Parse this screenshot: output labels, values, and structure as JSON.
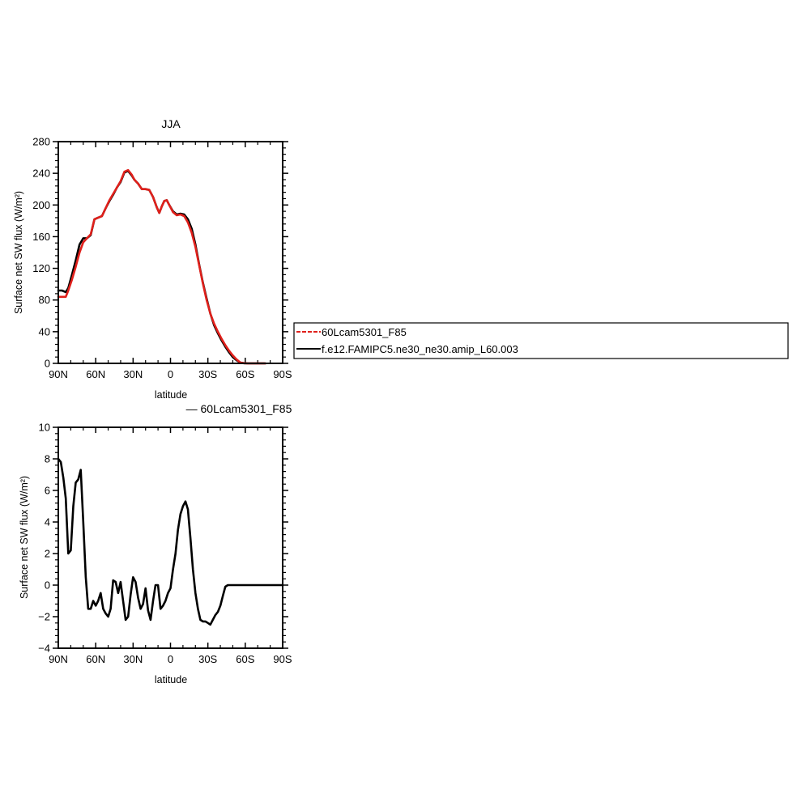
{
  "chart_data": [
    {
      "type": "line",
      "title": "JJA",
      "xlabel": "latitude",
      "ylabel": "Surface net SW flux (W/m²)",
      "xlim": [
        90,
        -90
      ],
      "ylim": [
        0,
        280
      ],
      "xticks": [
        90,
        60,
        30,
        0,
        -30,
        -60,
        -90
      ],
      "xtick_labels": [
        "90N",
        "60N",
        "30N",
        "0",
        "30S",
        "60S",
        "90S"
      ],
      "yticks": [
        0,
        40,
        80,
        120,
        160,
        200,
        240,
        280
      ],
      "ytick_labels": [
        "0",
        "40",
        "80",
        "120",
        "160",
        "200",
        "240",
        "280"
      ],
      "grid": false,
      "legend": {
        "placement": "right",
        "entries": [
          {
            "label": "60Lcam5301_F85",
            "color": "#e0201b",
            "style": "dashed"
          },
          {
            "label": "f.e12.FAMIPC5.ne30_ne30.amip_L60.003",
            "color": "#000000",
            "style": "solid"
          }
        ]
      },
      "series": [
        {
          "name": "60Lcam5301_F85",
          "color": "#e0201b",
          "x": [
            90,
            87,
            84,
            82,
            79,
            76,
            73,
            70,
            67,
            64,
            61,
            58,
            55,
            52,
            49,
            46,
            43,
            40,
            37,
            34,
            31,
            29,
            26,
            23,
            20,
            17,
            14,
            11,
            9,
            7,
            5,
            3,
            1,
            -2,
            -5,
            -8,
            -11,
            -14,
            -17,
            -20,
            -23,
            -26,
            -29,
            -32,
            -35,
            -38,
            -41,
            -44,
            -47,
            -50,
            -53,
            -56,
            -59,
            -62,
            -64,
            -66,
            -68,
            -70,
            -73,
            -76
          ],
          "y": [
            84,
            84,
            84,
            92,
            106,
            122,
            140,
            153,
            158,
            163,
            182,
            184,
            186,
            196,
            206,
            214,
            222,
            230,
            242,
            244,
            238,
            232,
            227,
            220,
            220,
            219,
            210,
            197,
            190,
            198,
            205,
            206,
            200,
            191,
            187,
            188,
            186,
            178,
            165,
            147,
            124,
            101,
            80,
            63,
            50,
            40,
            31,
            23,
            16,
            10,
            5,
            1,
            0.2,
            0,
            0,
            0,
            0,
            0,
            0,
            0
          ]
        },
        {
          "name": "f.e12.FAMIPC5.ne30_ne30.amip_L60.003",
          "color": "#000000",
          "x": [
            90,
            87,
            84,
            82,
            79,
            76,
            73,
            70,
            67,
            64,
            61,
            58,
            55,
            52,
            49,
            46,
            43,
            40,
            37,
            34,
            31,
            29,
            26,
            23,
            20,
            17,
            14,
            11,
            9,
            7,
            5,
            3,
            1,
            -2,
            -5,
            -8,
            -11,
            -14,
            -17,
            -20,
            -23,
            -26,
            -29,
            -32,
            -35,
            -38,
            -41,
            -44,
            -47,
            -50,
            -53,
            -56,
            -59,
            -62,
            -64,
            -66,
            -68,
            -70,
            -73,
            -76
          ],
          "y": [
            92,
            92,
            90,
            95,
            112,
            130,
            150,
            158,
            158,
            162,
            182,
            184,
            186,
            196,
            205,
            213,
            222,
            229,
            241,
            243,
            237,
            232,
            227,
            220,
            220,
            219,
            210,
            197,
            190,
            198,
            205,
            206,
            200,
            192,
            188,
            189,
            188,
            182,
            170,
            150,
            125,
            102,
            82,
            63,
            48,
            38,
            29,
            21,
            14,
            8,
            4,
            1,
            0.2,
            0,
            0,
            0,
            0,
            0,
            0,
            0
          ]
        }
      ]
    },
    {
      "type": "line",
      "title": "— 60Lcam5301_F85",
      "xlabel": "latitude",
      "ylabel": "Surface net SW flux (W/m²)",
      "xlim": [
        90,
        -90
      ],
      "ylim": [
        -4,
        10
      ],
      "xticks": [
        90,
        60,
        30,
        0,
        -30,
        -60,
        -90
      ],
      "xtick_labels": [
        "90N",
        "60N",
        "30N",
        "0",
        "30S",
        "60S",
        "90S"
      ],
      "yticks": [
        -4,
        -2,
        0,
        2,
        4,
        6,
        8,
        10
      ],
      "ytick_labels": [
        "−4",
        "−2",
        "0",
        "2",
        "4",
        "6",
        "8",
        "10"
      ],
      "grid": false,
      "series": [
        {
          "color": "#000000",
          "x": [
            90,
            88,
            86,
            84,
            82,
            80,
            78,
            76,
            74,
            72,
            70,
            68,
            66,
            64,
            62,
            60,
            58,
            56,
            54,
            52,
            50,
            48,
            46,
            44,
            42,
            40,
            38,
            36,
            34,
            32,
            30,
            28,
            26,
            24,
            22,
            20,
            18,
            16,
            14,
            12,
            10,
            8,
            6,
            4,
            2,
            0,
            -2,
            -4,
            -6,
            -8,
            -10,
            -12,
            -14,
            -16,
            -18,
            -20,
            -22,
            -24,
            -26,
            -28,
            -30,
            -32,
            -34,
            -36,
            -38,
            -40,
            -42,
            -44,
            -46,
            -48,
            -50,
            -52,
            -54,
            -56,
            -58,
            -60,
            -62,
            -64,
            -66,
            -68,
            -70,
            -75,
            -80,
            -85,
            -90
          ],
          "y": [
            8.0,
            7.8,
            6.8,
            5.5,
            2.0,
            2.2,
            5.0,
            6.5,
            6.7,
            7.3,
            4.0,
            0.5,
            -1.5,
            -1.5,
            -1.0,
            -1.3,
            -1.0,
            -0.5,
            -1.5,
            -1.8,
            -2.0,
            -1.5,
            0.3,
            0.2,
            -0.5,
            0.2,
            -1.0,
            -2.2,
            -2.0,
            -0.6,
            0.5,
            0.2,
            -0.8,
            -1.5,
            -1.2,
            -0.2,
            -1.6,
            -2.2,
            -1.0,
            0.0,
            0.0,
            -1.5,
            -1.3,
            -1.0,
            -0.5,
            -0.2,
            1.0,
            2.0,
            3.5,
            4.5,
            5.0,
            5.3,
            4.8,
            3.0,
            1.0,
            -0.5,
            -1.5,
            -2.2,
            -2.3,
            -2.3,
            -2.4,
            -2.5,
            -2.2,
            -1.9,
            -1.7,
            -1.3,
            -0.7,
            -0.1,
            0.0,
            0.0,
            0.0,
            0.0,
            0.0,
            0.0,
            0.0,
            0.0,
            0.0,
            0.0,
            0.0,
            0.0,
            0.0,
            0.0,
            0.0,
            0.0,
            0.0
          ]
        }
      ]
    }
  ]
}
